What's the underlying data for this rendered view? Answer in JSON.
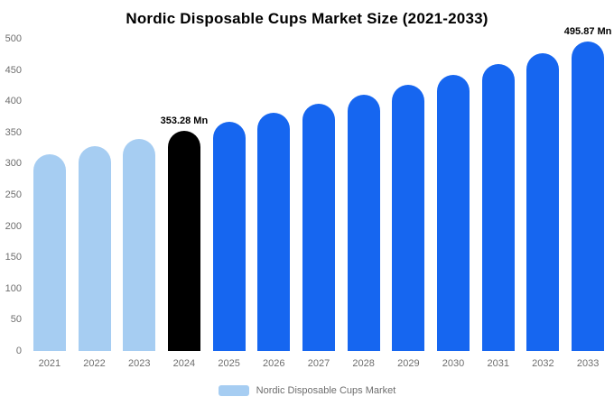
{
  "chart_data": {
    "type": "bar",
    "title": "Nordic Disposable Cups Market Size (2021-2033)",
    "categories": [
      "2021",
      "2022",
      "2023",
      "2024",
      "2025",
      "2026",
      "2027",
      "2028",
      "2029",
      "2030",
      "2031",
      "2032",
      "2033"
    ],
    "values": [
      315.5,
      327.6,
      340.2,
      353.28,
      366.8,
      380.9,
      395.5,
      410.7,
      426.5,
      442.9,
      459.9,
      477.5,
      495.87
    ],
    "bar_colors": [
      "#a6cdf2",
      "#a6cdf2",
      "#a6cdf2",
      "#000000",
      "#1666f0",
      "#1666f0",
      "#1666f0",
      "#1666f0",
      "#1666f0",
      "#1666f0",
      "#1666f0",
      "#1666f0",
      "#1666f0"
    ],
    "annotations": [
      {
        "category": "2024",
        "text": "353.28 Mn"
      },
      {
        "category": "2033",
        "text": "495.87 Mn"
      }
    ],
    "xlabel": "",
    "ylabel": "",
    "ylim": [
      0,
      500
    ],
    "yticks": [
      0,
      50,
      100,
      150,
      200,
      250,
      300,
      350,
      400,
      450,
      500
    ],
    "grid": false,
    "legend": [
      {
        "label": "Nordic Disposable Cups Market",
        "color": "#a6cdf2"
      }
    ],
    "legend_position": "bottom"
  },
  "colors": {
    "background": "#ffffff",
    "axis_text": "#6e6e6e",
    "annotation_text": "#000000",
    "highlight_bar": "#000000",
    "primary_bar": "#1666f0",
    "historic_bar": "#a6cdf2"
  }
}
